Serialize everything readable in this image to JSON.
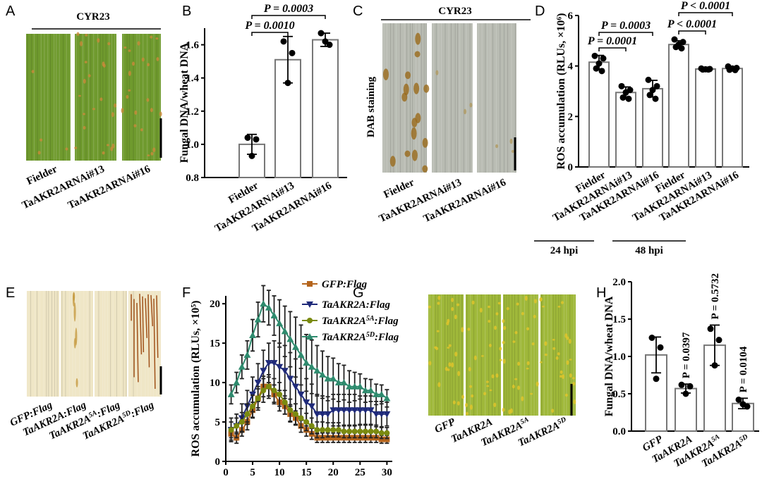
{
  "panel_letters": [
    "A",
    "B",
    "C",
    "D",
    "E",
    "F",
    "G",
    "H"
  ],
  "photos": [
    {
      "header": "CYR23",
      "labels": [
        "Fielder",
        "TaAKR2ARNAi#13",
        "TaAKR2ARNAi#16"
      ]
    },
    {
      "header": "CYR23",
      "side_label": "DAB staining",
      "labels": [
        "Fielder",
        "TaAKR2ARNAi#13",
        "TaAKR2ARNAi#16"
      ]
    },
    {
      "labels": [
        "GFP:Flag",
        "TaAKR2A:Flag",
        "TaAKR2A5A:Flag",
        "TaAKR2A5D:Flag"
      ]
    },
    {
      "labels": [
        "GFP",
        "TaAKR2A",
        "TaAKR2A5A",
        "TaAKR2A5D"
      ]
    }
  ],
  "chart_data": [
    {
      "type": "bar",
      "ylabel": "Fungal DNA/wheat DNA",
      "categories": [
        "Fielder",
        "TaAKR2ARNAi#13",
        "TaAKR2ARNAi#16"
      ],
      "values": [
        1.0,
        1.51,
        1.63
      ],
      "errors": [
        0.06,
        0.14,
        0.04
      ],
      "points": [
        [
          1.04,
          1.03,
          0.93
        ],
        [
          1.62,
          1.55,
          1.37
        ],
        [
          1.67,
          1.6,
          1.62
        ]
      ],
      "ylim": [
        0.8,
        1.7
      ],
      "yticks": [
        0.8,
        {
          "value": 1,
          "label": "1.0"
        },
        1.2,
        1.4,
        1.6
      ],
      "annotations": [
        "P = 0.0010",
        "P = 0.0003"
      ]
    },
    {
      "type": "bar",
      "ylabel": "ROS accumulation (RLUs, ×10⁶)",
      "categories": [
        "Fielder",
        "TaAKR2ARNAi#13",
        "TaAKR2ARNAi#16",
        "Fielder",
        "TaAKR2ARNAi#13",
        "TaAKR2ARNAi#16"
      ],
      "groups": [
        "24 hpi",
        "48 hpi"
      ],
      "values": [
        4.15,
        2.95,
        3.1,
        4.85,
        3.88,
        3.9
      ],
      "errors": [
        0.27,
        0.22,
        0.33,
        0.15,
        0.03,
        0.07
      ],
      "points": [
        [
          4.4,
          4.3,
          4.1,
          3.9,
          3.8
        ],
        [
          3.2,
          3.05,
          2.95,
          2.75,
          2.7
        ],
        [
          3.45,
          3.2,
          3.05,
          2.85,
          2.7
        ],
        [
          5.05,
          4.95,
          4.85,
          4.75,
          4.7
        ],
        [
          3.9,
          3.88,
          3.87,
          3.86,
          3.86
        ],
        [
          3.98,
          3.92,
          3.9,
          3.85,
          3.84
        ]
      ],
      "ylim": [
        0,
        6
      ],
      "yticks": [
        0,
        2,
        4,
        6
      ],
      "annotations": [
        "P = 0.0003",
        "P = 0.0001",
        "P < 0.0001",
        "P < 0.0001"
      ]
    },
    {
      "type": "line",
      "ylabel": "ROS accumulation (RLUs, ×10⁵)",
      "x": [
        1,
        2,
        3,
        4,
        5,
        6,
        7,
        8,
        9,
        10,
        11,
        12,
        13,
        14,
        15,
        16,
        17,
        18,
        19,
        20,
        21,
        22,
        23,
        24,
        25,
        26,
        27,
        28,
        29,
        30
      ],
      "xlim": [
        0,
        31
      ],
      "xticks": [
        0,
        5,
        10,
        15,
        20,
        25,
        30
      ],
      "ylim": [
        0,
        21
      ],
      "yticks": [
        0,
        5,
        10,
        15,
        20
      ],
      "series": [
        {
          "name": "GFP:Flag",
          "color": "#b5651d",
          "marker": "square",
          "values": [
            3.5,
            3,
            4,
            5,
            6.5,
            8,
            9.5,
            9.5,
            8.5,
            7.5,
            7,
            6,
            5.5,
            4.5,
            4,
            3.5,
            3,
            3,
            3,
            3,
            3,
            3,
            3,
            3,
            3,
            3,
            3,
            3,
            2.8,
            2.8
          ],
          "errors": [
            0.8,
            0.7,
            0.8,
            1,
            1,
            1.2,
            1.3,
            1.2,
            1.2,
            1.1,
            1,
            1,
            0.9,
            0.8,
            0.8,
            0.7,
            0.6,
            0.6,
            0.6,
            0.6,
            0.6,
            0.6,
            0.6,
            0.6,
            0.6,
            0.6,
            0.6,
            0.6,
            0.5,
            0.5
          ]
        },
        {
          "name": "TaAKR2A:Flag",
          "color": "#1f2a7a",
          "marker": "triangle-down",
          "values": [
            4,
            4.5,
            5.5,
            7,
            8.5,
            10,
            11.5,
            12.5,
            12.5,
            12,
            11.5,
            10.5,
            9.5,
            8.5,
            7.5,
            7,
            6,
            6,
            6,
            6.5,
            6.5,
            6.5,
            6.5,
            6.5,
            6.5,
            6.5,
            6.5,
            6,
            6,
            6
          ],
          "errors": [
            1.5,
            1.5,
            1.8,
            2,
            2.2,
            2.4,
            2.6,
            2.5,
            2.8,
            3,
            3.2,
            3.3,
            3.5,
            3.3,
            3,
            2.8,
            2.5,
            2.3,
            2.2,
            2,
            2,
            2,
            2,
            2,
            1.8,
            1.8,
            1.8,
            1.6,
            1.6,
            1.5
          ]
        },
        {
          "name": "TaAKR2A5A:Flag",
          "color": "#7a8a10",
          "marker": "circle",
          "values": [
            4,
            4.5,
            5,
            6,
            7,
            8,
            9,
            9.5,
            9,
            8.5,
            7.5,
            6.5,
            6,
            5.5,
            5,
            4.5,
            4,
            4,
            4,
            4,
            4,
            3.8,
            3.8,
            3.8,
            3.8,
            3.8,
            3.8,
            3.8,
            3.6,
            3.6
          ],
          "errors": [
            1,
            1,
            1.2,
            1.3,
            1.4,
            1.5,
            1.5,
            1.5,
            1.5,
            1.5,
            1.5,
            1.4,
            1.3,
            1.2,
            1.1,
            1,
            1,
            1,
            0.9,
            0.9,
            0.9,
            0.8,
            0.8,
            0.8,
            0.8,
            0.8,
            0.8,
            0.8,
            0.7,
            0.7
          ]
        },
        {
          "name": "TaAKR2A5D:Flag",
          "color": "#2e8b6e",
          "marker": "triangle-up",
          "values": [
            8.5,
            10,
            12,
            13.5,
            16,
            18,
            20,
            19.5,
            18.5,
            17.5,
            16.5,
            15.5,
            14.5,
            13.5,
            12.5,
            12,
            11.5,
            11,
            10.5,
            10.5,
            10,
            10,
            9.5,
            9.5,
            9.5,
            9,
            9,
            8.5,
            8.5,
            8
          ],
          "errors": [
            1.2,
            1.3,
            1.5,
            1.8,
            2,
            2.2,
            2.3,
            2.2,
            2.5,
            3,
            3.2,
            3.5,
            3.8,
            3.8,
            3.6,
            3.4,
            3.2,
            3,
            2.8,
            2.6,
            2.4,
            2.2,
            2,
            1.8,
            1.6,
            1.5,
            1.4,
            1.3,
            1.2,
            1.1
          ]
        }
      ]
    },
    {
      "type": "bar",
      "ylabel": "Fungal DNA/wheat DNA",
      "categories": [
        "GFP",
        "TaAKR2A",
        "TaAKR2A5A",
        "TaAKR2A5D"
      ],
      "values": [
        1.02,
        0.57,
        1.15,
        0.37
      ],
      "errors": [
        0.24,
        0.06,
        0.27,
        0.07
      ],
      "points": [
        [
          1.25,
          1.12,
          0.7
        ],
        [
          0.62,
          0.6,
          0.5
        ],
        [
          1.37,
          1.22,
          0.88
        ],
        [
          0.42,
          0.33,
          0.36
        ]
      ],
      "ylim": [
        0,
        2
      ],
      "yticks": [
        {
          "value": 0,
          "label": "0.0"
        },
        0.5,
        {
          "value": 1,
          "label": "1.0"
        },
        1.5,
        {
          "value": 2,
          "label": "2.0"
        }
      ],
      "annotations": [
        "P = 0.0397",
        "P = 0.5732",
        "P = 0.0104"
      ]
    }
  ]
}
